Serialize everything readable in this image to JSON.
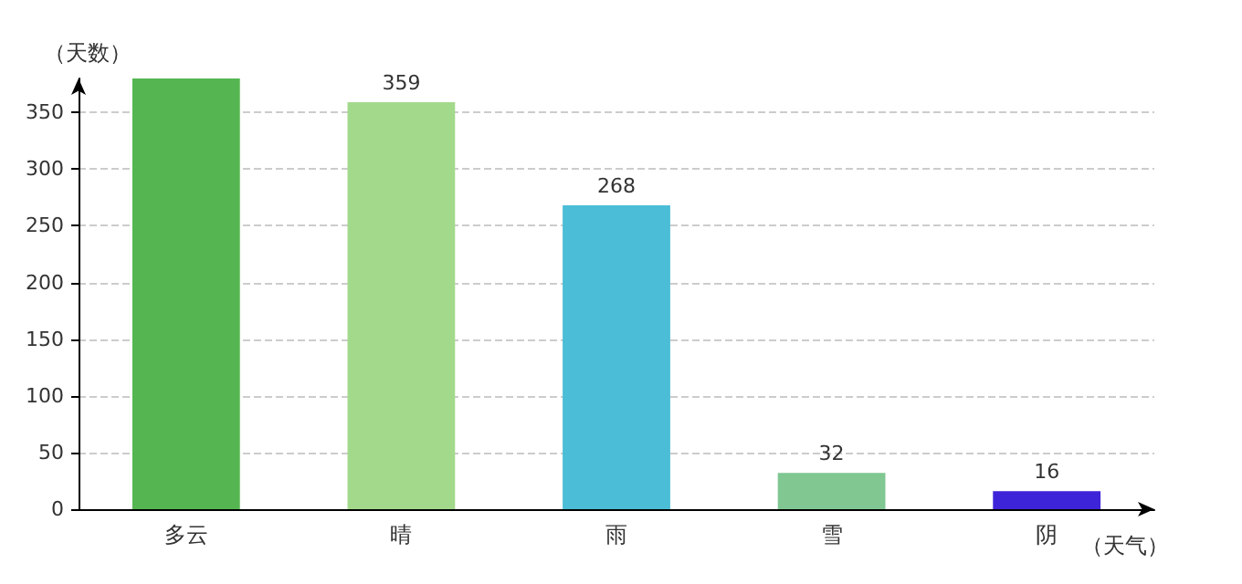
{
  "chart_data": {
    "type": "bar",
    "xlabel": "（天气）",
    "ylabel": "（天数）",
    "categories": [
      "多云",
      "晴",
      "雨",
      "雪",
      "阴"
    ],
    "values": [
      380,
      359,
      268,
      32,
      16
    ],
    "value_labels": [
      null,
      "359",
      "268",
      "32",
      "16"
    ],
    "colors": [
      "#55b651",
      "#a3d98b",
      "#4bbdd6",
      "#80c792",
      "#3e24d8"
    ],
    "ylim": [
      0,
      380
    ],
    "yticks": [
      0,
      50,
      100,
      150,
      200,
      250,
      300,
      350
    ],
    "grid": "y"
  }
}
